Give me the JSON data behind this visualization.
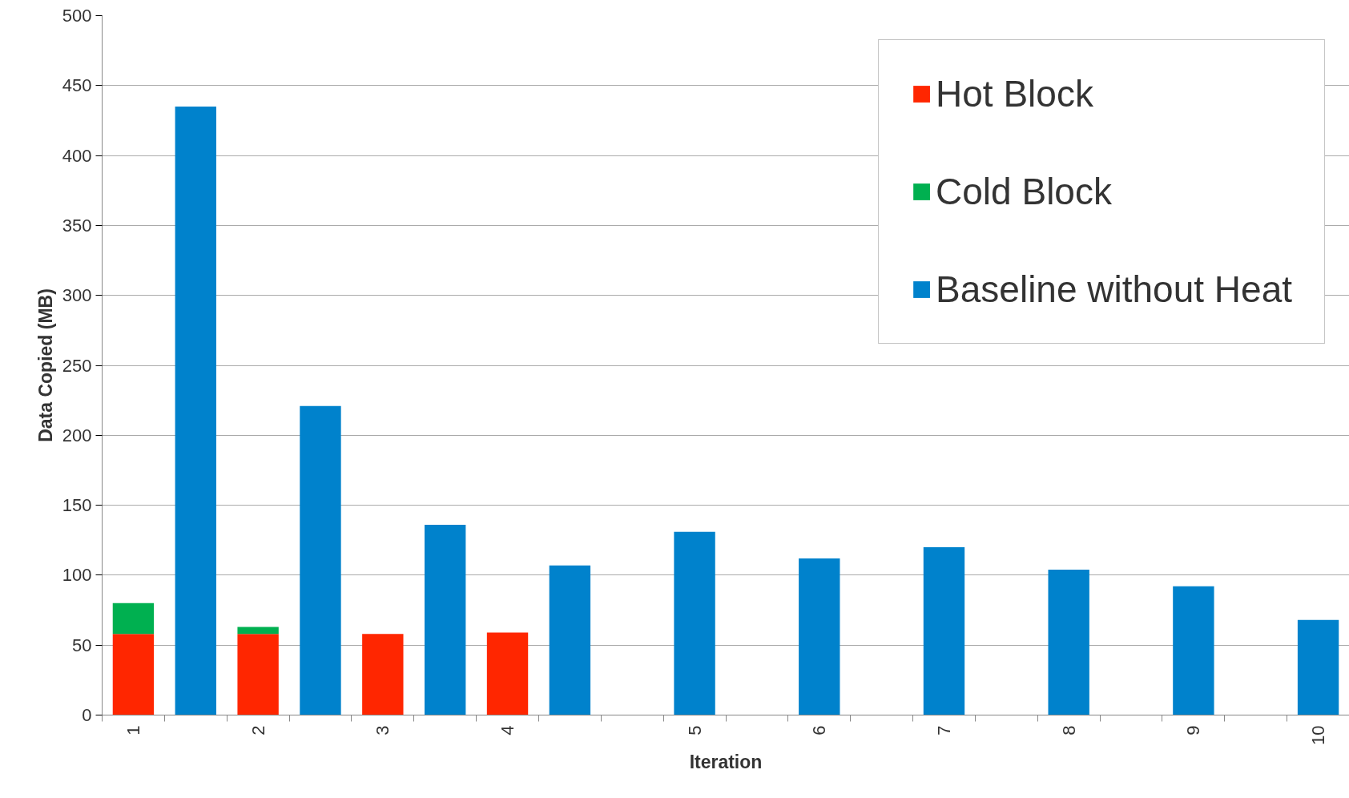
{
  "chart_data": {
    "type": "bar",
    "stacked": true,
    "xlabel": "Iteration",
    "ylabel": "Data Copied (MB)",
    "categories": [
      "1",
      null,
      "2",
      null,
      "3",
      null,
      "4",
      null,
      null,
      "5",
      null,
      "6",
      null,
      "7",
      null,
      "8",
      null,
      "9",
      null,
      "10"
    ],
    "series": [
      {
        "name": "Hot Block",
        "color": "#ff2600",
        "values": [
          58,
          null,
          58,
          null,
          58,
          null,
          59,
          null,
          null,
          null,
          null,
          null,
          null,
          null,
          null,
          null,
          null,
          null,
          null,
          null
        ]
      },
      {
        "name": "Cold Block",
        "color": "#00b050",
        "values": [
          22,
          null,
          5,
          null,
          null,
          null,
          null,
          null,
          null,
          null,
          null,
          null,
          null,
          null,
          null,
          null,
          null,
          null,
          null,
          null
        ]
      },
      {
        "name": "Baseline without Heat",
        "color": "#0082cc",
        "values": [
          null,
          435,
          null,
          221,
          null,
          136,
          null,
          107,
          null,
          131,
          null,
          112,
          null,
          120,
          null,
          104,
          null,
          92,
          null,
          68
        ]
      }
    ],
    "ylim": [
      0,
      500
    ],
    "yticks": [
      0,
      50,
      100,
      150,
      200,
      250,
      300,
      350,
      400,
      450,
      500
    ],
    "grid": "y",
    "legend": "top right"
  }
}
